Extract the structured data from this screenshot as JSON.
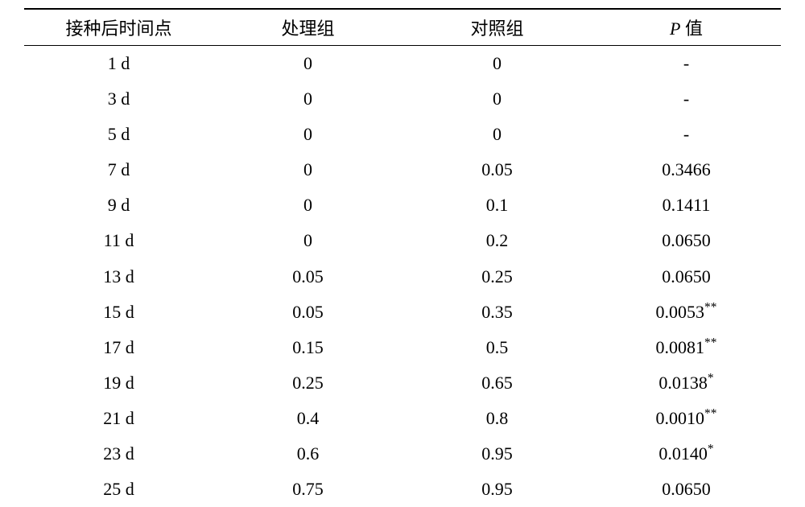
{
  "table": {
    "columns": [
      {
        "label": "接种后时间点",
        "width": "25%",
        "align": "center"
      },
      {
        "label": "处理组",
        "width": "25%",
        "align": "center"
      },
      {
        "label": "对照组",
        "width": "25%",
        "align": "center"
      },
      {
        "label_prefix_italic": "P",
        "label_suffix": " 值",
        "width": "25%",
        "align": "center"
      }
    ],
    "rows": [
      {
        "time": "1 d",
        "treat": "0",
        "ctrl": "0",
        "p": "-",
        "sig": ""
      },
      {
        "time": "3 d",
        "treat": "0",
        "ctrl": "0",
        "p": "-",
        "sig": ""
      },
      {
        "time": "5 d",
        "treat": "0",
        "ctrl": "0",
        "p": "-",
        "sig": ""
      },
      {
        "time": "7 d",
        "treat": "0",
        "ctrl": "0.05",
        "p": "0.3466",
        "sig": ""
      },
      {
        "time": "9 d",
        "treat": "0",
        "ctrl": "0.1",
        "p": "0.1411",
        "sig": ""
      },
      {
        "time": "11 d",
        "treat": "0",
        "ctrl": "0.2",
        "p": "0.0650",
        "sig": ""
      },
      {
        "time": "13 d",
        "treat": "0.05",
        "ctrl": "0.25",
        "p": "0.0650",
        "sig": ""
      },
      {
        "time": "15 d",
        "treat": "0.05",
        "ctrl": "0.35",
        "p": "0.0053",
        "sig": "**"
      },
      {
        "time": "17 d",
        "treat": "0.15",
        "ctrl": "0.5",
        "p": "0.0081",
        "sig": "**"
      },
      {
        "time": "19 d",
        "treat": "0.25",
        "ctrl": "0.65",
        "p": "0.0138",
        "sig": "*"
      },
      {
        "time": "21 d",
        "treat": "0.4",
        "ctrl": "0.8",
        "p": "0.0010",
        "sig": "**"
      },
      {
        "time": "23 d",
        "treat": "0.6",
        "ctrl": "0.95",
        "p": "0.0140",
        "sig": "*"
      },
      {
        "time": "25 d",
        "treat": "0.75",
        "ctrl": "0.95",
        "p": "0.0650",
        "sig": ""
      }
    ],
    "style": {
      "font_family": "Times New Roman, SimSun, serif",
      "font_size_pt": 16,
      "header_border_top": "2px solid #000000",
      "header_border_bottom": "1.5px solid #000000",
      "text_color": "#000000",
      "background_color": "#ffffff",
      "row_line_height": 1.55
    }
  }
}
